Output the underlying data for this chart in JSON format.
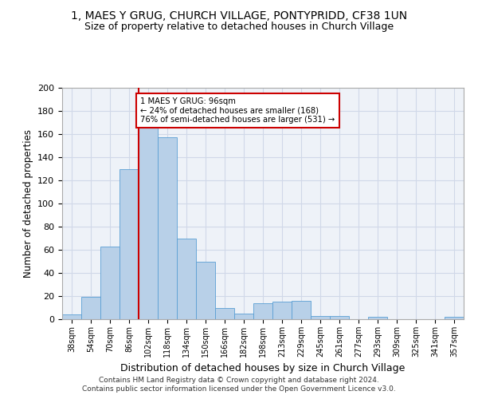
{
  "title": "1, MAES Y GRUG, CHURCH VILLAGE, PONTYPRIDD, CF38 1UN",
  "subtitle": "Size of property relative to detached houses in Church Village",
  "xlabel": "Distribution of detached houses by size in Church Village",
  "ylabel": "Number of detached properties",
  "categories": [
    "38sqm",
    "54sqm",
    "70sqm",
    "86sqm",
    "102sqm",
    "118sqm",
    "134sqm",
    "150sqm",
    "166sqm",
    "182sqm",
    "198sqm",
    "213sqm",
    "229sqm",
    "245sqm",
    "261sqm",
    "277sqm",
    "293sqm",
    "309sqm",
    "325sqm",
    "341sqm",
    "357sqm"
  ],
  "values": [
    4,
    19,
    63,
    130,
    170,
    157,
    70,
    50,
    10,
    5,
    14,
    15,
    16,
    3,
    3,
    0,
    2,
    0,
    0,
    0,
    2
  ],
  "bar_color": "#b8d0e8",
  "bar_edge_color": "#5a9fd4",
  "grid_color": "#d0d8e8",
  "background_color": "#eef2f8",
  "vline_color": "#cc0000",
  "annotation_text": "1 MAES Y GRUG: 96sqm\n← 24% of detached houses are smaller (168)\n76% of semi-detached houses are larger (531) →",
  "annotation_box_color": "#ffffff",
  "annotation_border_color": "#cc0000",
  "footer1": "Contains HM Land Registry data © Crown copyright and database right 2024.",
  "footer2": "Contains public sector information licensed under the Open Government Licence v3.0.",
  "ylim": [
    0,
    200
  ],
  "yticks": [
    0,
    20,
    40,
    60,
    80,
    100,
    120,
    140,
    160,
    180,
    200
  ]
}
